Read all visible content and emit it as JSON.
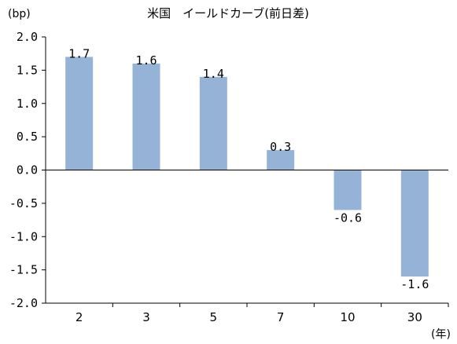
{
  "chart_data": {
    "type": "bar",
    "title": "米国　イールドカーブ(前日差)",
    "ylabel": "(bp)",
    "xlabel": "(年)",
    "categories": [
      "2",
      "3",
      "5",
      "7",
      "10",
      "30"
    ],
    "values": [
      1.7,
      1.6,
      1.4,
      0.3,
      -0.6,
      -1.6
    ],
    "data_labels": [
      "1.7",
      "1.6",
      "1.4",
      "0.3",
      "-0.6",
      "-1.6"
    ],
    "ylim": [
      -2.0,
      2.0
    ],
    "yticks": [
      2.0,
      1.5,
      1.0,
      0.5,
      0.0,
      -0.5,
      -1.0,
      -1.5,
      -2.0
    ],
    "ytick_labels": [
      "2.0",
      "1.5",
      "1.0",
      "0.5",
      "0.0",
      "-0.5",
      "-1.0",
      "-1.5",
      "-2.0"
    ],
    "grid": false,
    "legend": "none",
    "bar_color": "#95b3d7"
  }
}
